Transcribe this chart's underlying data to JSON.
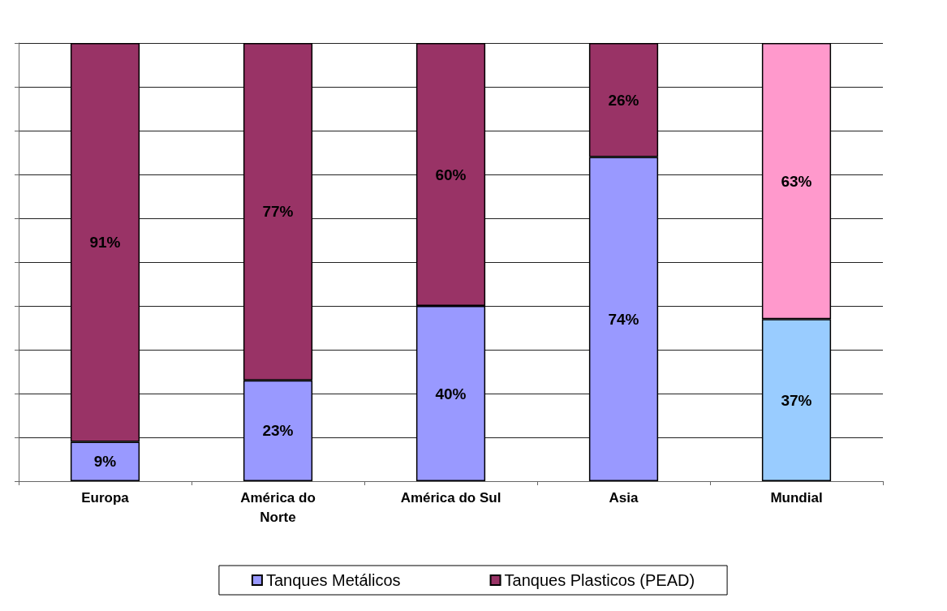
{
  "chart_data": {
    "type": "bar",
    "stacked": true,
    "categories": [
      "Europa",
      "América do\nNorte",
      "América do Sul",
      "Asia",
      "Mundial"
    ],
    "series": [
      {
        "name": "Tanques Metálicos",
        "color": "#9999ff",
        "colors": [
          "#9999ff",
          "#9999ff",
          "#9999ff",
          "#9999ff",
          "#99ccff"
        ],
        "values": [
          9,
          23,
          40,
          74,
          37
        ],
        "value_labels": [
          "9%",
          "23%",
          "40%",
          "74%",
          "37%"
        ]
      },
      {
        "name": "Tanques Plasticos (PEAD)",
        "color": "#993366",
        "colors": [
          "#993366",
          "#993366",
          "#993366",
          "#993366",
          "#ff99cc"
        ],
        "values": [
          91,
          77,
          60,
          26,
          63
        ],
        "value_labels": [
          "91%",
          "77%",
          "60%",
          "26%",
          "63%"
        ]
      }
    ],
    "ylim": [
      0,
      100
    ],
    "yticks": [
      {
        "value": 0,
        "label": null
      },
      {
        "value": 10,
        "label": null
      },
      {
        "value": 20,
        "label": null
      },
      {
        "value": 30,
        "label": null
      },
      {
        "value": 40,
        "label": null
      },
      {
        "value": 50,
        "label": null
      },
      {
        "value": 60,
        "label": null
      },
      {
        "value": 70,
        "label": null
      },
      {
        "value": 80,
        "label": null
      },
      {
        "value": 90,
        "label": null
      },
      {
        "value": 100,
        "label": null
      }
    ],
    "tick_labels": "x",
    "grid": "y",
    "legend": "bottom"
  }
}
